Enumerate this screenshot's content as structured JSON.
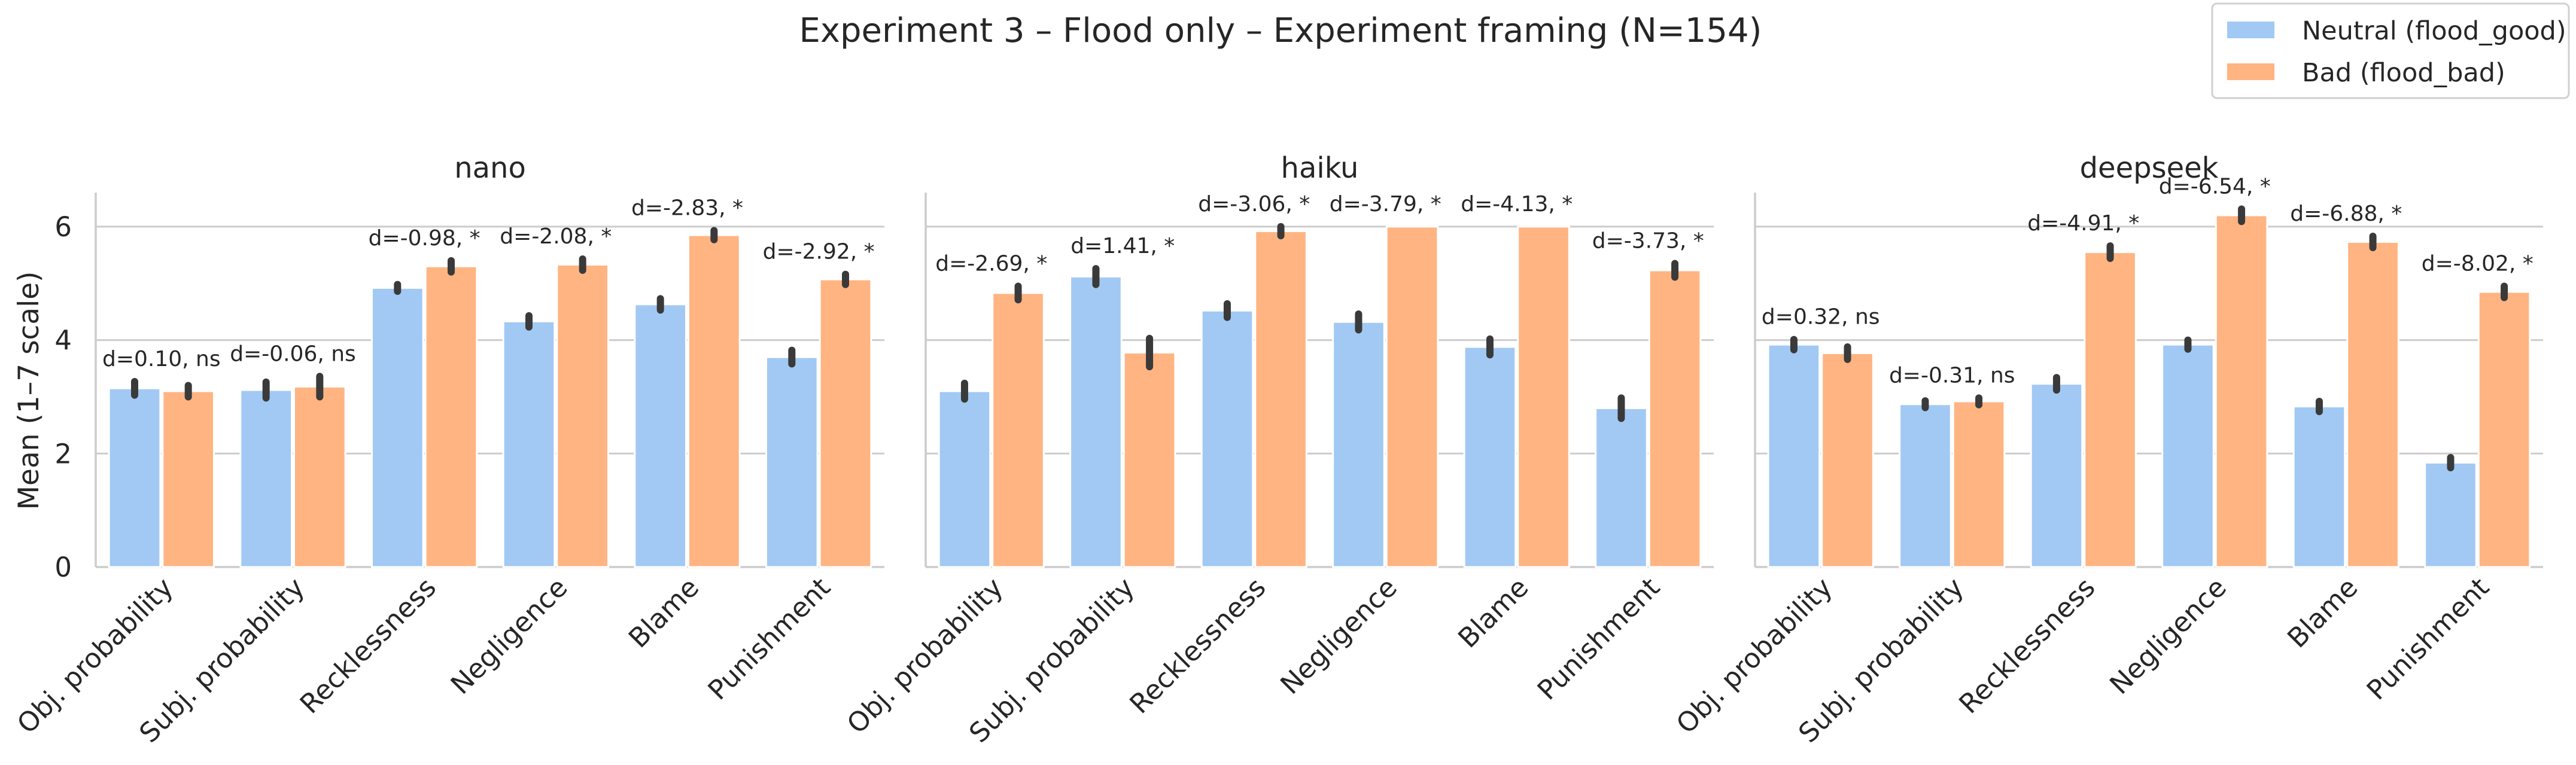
{
  "chart_data": {
    "type": "bar",
    "title": "Experiment 3 – Flood only – Experiment framing (N=154)",
    "ylabel": "Mean (1–7 scale)",
    "ylim": [
      0,
      6.6
    ],
    "yticks": [
      "0",
      "2",
      "4",
      "6"
    ],
    "grid": true,
    "legend_position": "top-right",
    "colors": {
      "neutral": "#a1c9f4",
      "bad": "#ffb482"
    },
    "categories": [
      "Obj. probability",
      "Subj. probability",
      "Recklessness",
      "Negligence",
      "Blame",
      "Punishment"
    ],
    "legend": [
      "Neutral (flood_good)",
      "Bad (flood_bad)"
    ],
    "panels": [
      {
        "title": "nano",
        "series": [
          {
            "name": "Neutral (flood_good)",
            "values": [
              3.15,
              3.12,
              4.92,
              4.33,
              4.63,
              3.7
            ],
            "err": [
              0.12,
              0.14,
              0.06,
              0.1,
              0.1,
              0.12
            ]
          },
          {
            "name": "Bad (flood_bad)",
            "values": [
              3.1,
              3.18,
              5.3,
              5.33,
              5.85,
              5.07
            ],
            "err": [
              0.1,
              0.18,
              0.1,
              0.1,
              0.08,
              0.09
            ]
          }
        ],
        "annotations": [
          "d=0.10, ns",
          "d=-0.06, ns",
          "d=-0.98, *",
          "d=-2.08, *",
          "d=-2.83, *",
          "d=-2.92, *"
        ]
      },
      {
        "title": "haiku",
        "series": [
          {
            "name": "Neutral (flood_good)",
            "values": [
              3.1,
              5.12,
              4.52,
              4.32,
              3.88,
              2.8
            ],
            "err": [
              0.14,
              0.14,
              0.12,
              0.14,
              0.14,
              0.18
            ]
          },
          {
            "name": "Bad (flood_bad)",
            "values": [
              4.83,
              3.78,
              5.92,
              6.0,
              6.0,
              5.23
            ],
            "err": [
              0.12,
              0.25,
              0.08,
              0.0,
              0.0,
              0.12
            ]
          }
        ],
        "annotations": [
          "d=-2.69, *",
          "d=1.41, *",
          "d=-3.06, *",
          "d=-3.79, *",
          "d=-4.13, *",
          "d=-3.73, *"
        ]
      },
      {
        "title": "deepseek",
        "series": [
          {
            "name": "Neutral (flood_good)",
            "values": [
              3.92,
              2.87,
              3.23,
              3.92,
              2.83,
              1.84
            ],
            "err": [
              0.09,
              0.06,
              0.11,
              0.08,
              0.09,
              0.09
            ]
          },
          {
            "name": "Bad (flood_bad)",
            "values": [
              3.77,
              2.92,
              5.55,
              6.2,
              5.73,
              4.85
            ],
            "err": [
              0.11,
              0.06,
              0.11,
              0.11,
              0.1,
              0.1
            ]
          }
        ],
        "annotations": [
          "d=0.32, ns",
          "d=-0.31, ns",
          "d=-4.91, *",
          "d=-6.54, *",
          "d=-6.88, *",
          "d=-8.02, *"
        ]
      }
    ]
  }
}
